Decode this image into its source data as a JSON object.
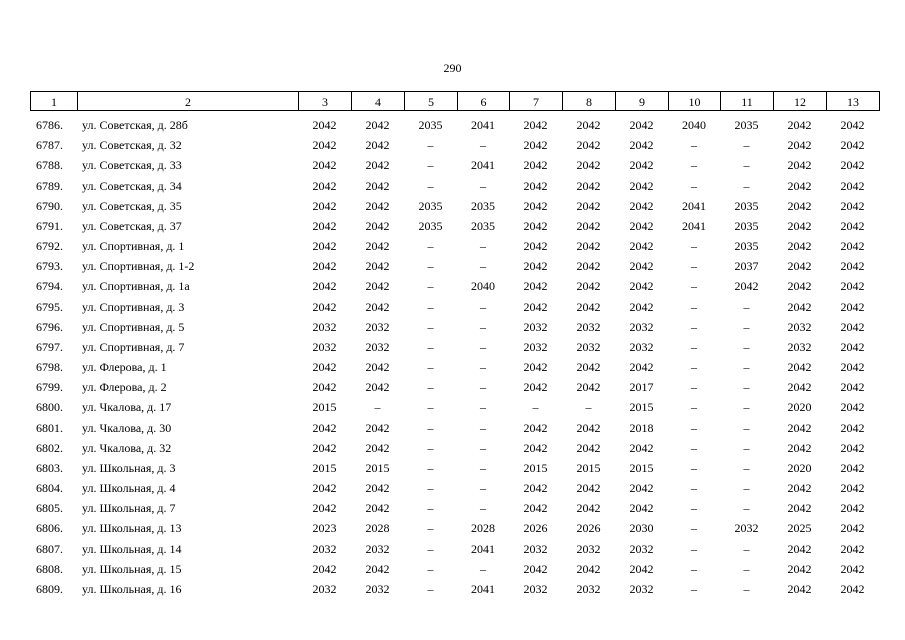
{
  "page_number": "290",
  "table": {
    "header": [
      "1",
      "2",
      "3",
      "4",
      "5",
      "6",
      "7",
      "8",
      "9",
      "10",
      "11",
      "12",
      "13"
    ],
    "rows": [
      [
        "6786.",
        "ул. Советская, д. 28б",
        "2042",
        "2042",
        "2035",
        "2041",
        "2042",
        "2042",
        "2042",
        "2040",
        "2035",
        "2042",
        "2042"
      ],
      [
        "6787.",
        "ул. Советская, д. 32",
        "2042",
        "2042",
        "–",
        "–",
        "2042",
        "2042",
        "2042",
        "–",
        "–",
        "2042",
        "2042"
      ],
      [
        "6788.",
        "ул. Советская, д. 33",
        "2042",
        "2042",
        "–",
        "2041",
        "2042",
        "2042",
        "2042",
        "–",
        "–",
        "2042",
        "2042"
      ],
      [
        "6789.",
        "ул. Советская, д. 34",
        "2042",
        "2042",
        "–",
        "–",
        "2042",
        "2042",
        "2042",
        "–",
        "–",
        "2042",
        "2042"
      ],
      [
        "6790.",
        "ул. Советская, д. 35",
        "2042",
        "2042",
        "2035",
        "2035",
        "2042",
        "2042",
        "2042",
        "2041",
        "2035",
        "2042",
        "2042"
      ],
      [
        "6791.",
        "ул. Советская, д. 37",
        "2042",
        "2042",
        "2035",
        "2035",
        "2042",
        "2042",
        "2042",
        "2041",
        "2035",
        "2042",
        "2042"
      ],
      [
        "6792.",
        "ул. Спортивная, д. 1",
        "2042",
        "2042",
        "–",
        "–",
        "2042",
        "2042",
        "2042",
        "–",
        "2035",
        "2042",
        "2042"
      ],
      [
        "6793.",
        "ул. Спортивная, д. 1-2",
        "2042",
        "2042",
        "–",
        "–",
        "2042",
        "2042",
        "2042",
        "–",
        "2037",
        "2042",
        "2042"
      ],
      [
        "6794.",
        "ул. Спортивная, д. 1а",
        "2042",
        "2042",
        "–",
        "2040",
        "2042",
        "2042",
        "2042",
        "–",
        "2042",
        "2042",
        "2042"
      ],
      [
        "6795.",
        "ул. Спортивная, д. 3",
        "2042",
        "2042",
        "–",
        "–",
        "2042",
        "2042",
        "2042",
        "–",
        "–",
        "2042",
        "2042"
      ],
      [
        "6796.",
        "ул. Спортивная, д. 5",
        "2032",
        "2032",
        "–",
        "–",
        "2032",
        "2032",
        "2032",
        "–",
        "–",
        "2032",
        "2042"
      ],
      [
        "6797.",
        "ул. Спортивная, д. 7",
        "2032",
        "2032",
        "–",
        "–",
        "2032",
        "2032",
        "2032",
        "–",
        "–",
        "2032",
        "2042"
      ],
      [
        "6798.",
        "ул. Флерова, д. 1",
        "2042",
        "2042",
        "–",
        "–",
        "2042",
        "2042",
        "2042",
        "–",
        "–",
        "2042",
        "2042"
      ],
      [
        "6799.",
        "ул. Флерова, д. 2",
        "2042",
        "2042",
        "–",
        "–",
        "2042",
        "2042",
        "2017",
        "–",
        "–",
        "2042",
        "2042"
      ],
      [
        "6800.",
        "ул. Чкалова, д. 17",
        "2015",
        "–",
        "–",
        "–",
        "–",
        "–",
        "2015",
        "–",
        "–",
        "2020",
        "2042"
      ],
      [
        "6801.",
        "ул. Чкалова, д. 30",
        "2042",
        "2042",
        "–",
        "–",
        "2042",
        "2042",
        "2018",
        "–",
        "–",
        "2042",
        "2042"
      ],
      [
        "6802.",
        "ул. Чкалова, д. 32",
        "2042",
        "2042",
        "–",
        "–",
        "2042",
        "2042",
        "2042",
        "–",
        "–",
        "2042",
        "2042"
      ],
      [
        "6803.",
        "ул. Школьная, д. 3",
        "2015",
        "2015",
        "–",
        "–",
        "2015",
        "2015",
        "2015",
        "–",
        "–",
        "2020",
        "2042"
      ],
      [
        "6804.",
        "ул. Школьная, д. 4",
        "2042",
        "2042",
        "–",
        "–",
        "2042",
        "2042",
        "2042",
        "–",
        "–",
        "2042",
        "2042"
      ],
      [
        "6805.",
        "ул. Школьная, д. 7",
        "2042",
        "2042",
        "–",
        "–",
        "2042",
        "2042",
        "2042",
        "–",
        "–",
        "2042",
        "2042"
      ],
      [
        "6806.",
        "ул. Школьная, д. 13",
        "2023",
        "2028",
        "–",
        "2028",
        "2026",
        "2026",
        "2030",
        "–",
        "2032",
        "2025",
        "2042"
      ],
      [
        "6807.",
        "ул. Школьная, д. 14",
        "2032",
        "2032",
        "–",
        "2041",
        "2032",
        "2032",
        "2032",
        "–",
        "–",
        "2042",
        "2042"
      ],
      [
        "6808.",
        "ул. Школьная, д. 15",
        "2042",
        "2042",
        "–",
        "–",
        "2042",
        "2042",
        "2042",
        "–",
        "–",
        "2042",
        "2042"
      ],
      [
        "6809.",
        "ул. Школьная, д. 16",
        "2032",
        "2032",
        "–",
        "2041",
        "2032",
        "2032",
        "2032",
        "–",
        "–",
        "2042",
        "2042"
      ]
    ]
  }
}
